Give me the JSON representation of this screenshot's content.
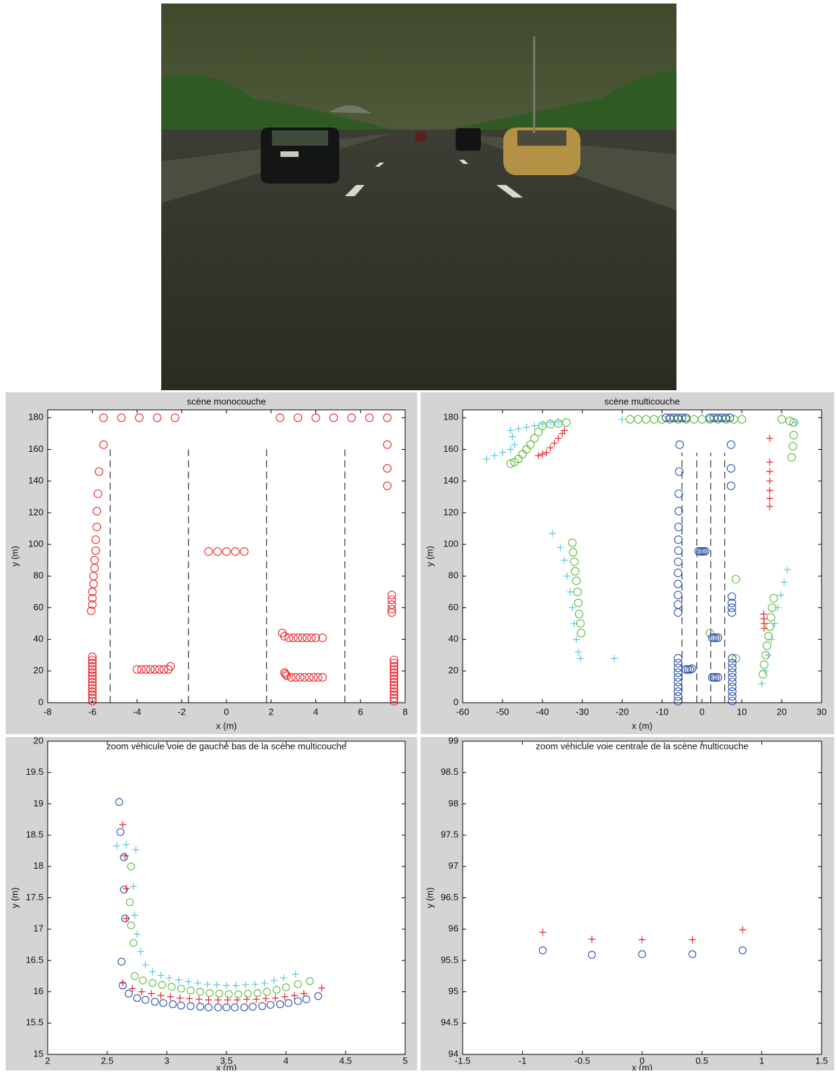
{
  "chart_data": [
    {
      "type": "scatter",
      "title": "scène monocouche",
      "xlabel": "x (m)",
      "ylabel": "y (m)",
      "xlim": [
        -8,
        8
      ],
      "xticks": [
        -8,
        -6,
        -4,
        -2,
        0,
        2,
        4,
        6,
        8
      ],
      "ylim": [
        0,
        185
      ],
      "yticks": [
        0,
        20,
        40,
        60,
        80,
        100,
        120,
        140,
        160,
        180
      ],
      "lane_x": [
        -5.2,
        -1.7,
        1.8,
        5.3
      ],
      "lane_y": [
        0,
        160
      ],
      "series": [
        {
          "color": "#e8232a",
          "marker": "circle",
          "x": [
            -5.5,
            -4.7,
            -3.9,
            -3.1,
            -2.3,
            2.4,
            3.2,
            4.0,
            4.8,
            5.6,
            6.4,
            7.2
          ],
          "y": [
            180,
            180,
            180,
            180,
            180,
            180,
            180,
            180,
            180,
            180,
            180,
            180
          ]
        },
        {
          "color": "#e8232a",
          "marker": "circle",
          "x": [
            -5.5,
            -5.7,
            -5.75,
            -5.8,
            -5.8,
            -5.85,
            -5.85,
            -5.9,
            -5.9,
            -5.95,
            -5.95,
            -6,
            -6,
            -6,
            -6.05,
            -6,
            -6,
            -6,
            -6,
            -6,
            -6,
            -6,
            -6,
            -6,
            -6,
            -6,
            -6,
            -6,
            -6,
            -6
          ],
          "y": [
            163,
            146,
            132,
            121,
            111,
            103,
            96,
            90,
            85,
            80,
            75,
            70,
            66,
            62,
            58,
            1,
            3,
            5,
            7,
            9,
            11,
            13,
            15,
            17,
            19,
            21,
            23,
            25,
            27,
            29
          ]
        },
        {
          "color": "#e8232a",
          "marker": "circle",
          "x": [
            7.2,
            7.2,
            7.2,
            7.4,
            7.4,
            7.4,
            7.4,
            7.4,
            7.5,
            7.5,
            7.5,
            7.5,
            7.5,
            7.5,
            7.5,
            7.5,
            7.5,
            7.5,
            7.5,
            7.5,
            7.5,
            7.5
          ],
          "y": [
            163,
            148,
            137,
            68,
            65,
            62,
            59,
            57,
            1,
            3,
            5,
            7,
            9,
            11,
            13,
            15,
            17,
            19,
            21,
            23,
            25,
            27
          ]
        },
        {
          "color": "#e8232a",
          "marker": "circle",
          "x": [
            -0.8,
            -0.4,
            0,
            0.4,
            0.8,
            -4,
            -3.8,
            -3.6,
            -3.4,
            -3.2,
            -3,
            -2.8,
            -2.6,
            -2.5,
            2.5,
            2.6,
            2.8,
            3,
            3.2,
            3.4,
            3.6,
            3.8,
            4,
            4.3,
            2.6,
            2.65,
            2.7,
            2.9,
            3.1,
            3.3,
            3.5,
            3.7,
            3.9,
            4.1,
            4.3
          ],
          "y": [
            95.5,
            95.5,
            95.5,
            95.5,
            95.5,
            21,
            21,
            21,
            21,
            21,
            21,
            21,
            21,
            23,
            44,
            42,
            41,
            41,
            41,
            41,
            41,
            41,
            41,
            41,
            19,
            18,
            17,
            16,
            16,
            16,
            16,
            16,
            16,
            16,
            16
          ]
        }
      ]
    },
    {
      "type": "scatter",
      "title": "scène multicouche",
      "xlabel": "x (m)",
      "ylabel": "y (m)",
      "xlim": [
        -60,
        30
      ],
      "xticks": [
        -60,
        -50,
        -40,
        -30,
        -20,
        -10,
        0,
        10,
        20,
        30
      ],
      "ylim": [
        0,
        185
      ],
      "yticks": [
        0,
        20,
        40,
        60,
        80,
        100,
        120,
        140,
        160,
        180
      ],
      "lane_x": [
        -5.0,
        -1.3,
        2.2,
        5.7
      ],
      "lane_y": [
        0,
        158
      ],
      "series": [
        {
          "color": "#5cb83c",
          "marker": "circle",
          "x": [
            -18,
            -16,
            -14,
            -12,
            -10,
            -8,
            -6,
            -4,
            -2,
            0,
            2,
            4,
            6,
            8,
            10,
            -48,
            -47,
            -46,
            -45,
            -44,
            -43,
            -42,
            -41,
            -40,
            -38,
            -36,
            -34,
            -32.5,
            -32.3,
            -32,
            -31.8,
            -31.5,
            -31.2,
            -31,
            -30.8,
            -30.5,
            -30.3,
            15.3,
            15.6,
            16,
            16.3,
            16.7,
            17,
            17.3,
            17.6,
            18,
            20,
            22,
            23,
            23,
            22.8,
            22.5,
            2,
            8.5,
            8.5
          ],
          "y": [
            179,
            179,
            179,
            179,
            179,
            179,
            179,
            179,
            179,
            179,
            179,
            179,
            179,
            179,
            179,
            151,
            152,
            154,
            157,
            160,
            163,
            167,
            171,
            175,
            176,
            176.5,
            177,
            101,
            95,
            89,
            83,
            77,
            70,
            63,
            56,
            50,
            44,
            18,
            24,
            30,
            36,
            42,
            48,
            54,
            60,
            66,
            179,
            178,
            177,
            169,
            162,
            155,
            44,
            78,
            28
          ]
        },
        {
          "color": "#5bc8e0",
          "marker": "plus",
          "x": [
            -54,
            -52,
            -50,
            -48,
            -47,
            -47.5,
            -48,
            -46,
            -44,
            -42,
            -40,
            -38,
            -36,
            -37.5,
            -35.5,
            -34.5,
            -33.8,
            -33,
            -32.5,
            -32,
            -31.5,
            -31,
            -30.5,
            -22,
            15,
            15.8,
            16.6,
            17.4,
            18.2,
            19,
            19.8,
            20.6,
            21.4,
            -20,
            23.5
          ],
          "y": [
            154,
            156,
            158,
            160,
            163,
            168,
            172,
            173,
            174,
            175,
            176,
            177,
            177.5,
            107,
            98,
            90,
            80,
            70,
            60,
            50,
            40,
            32,
            28,
            28,
            12,
            20,
            30,
            40,
            50,
            60,
            68,
            76,
            84,
            179,
            177
          ]
        },
        {
          "color": "#e8232a",
          "marker": "plus",
          "x": [
            -41,
            -40,
            -39,
            -38,
            -37,
            -36,
            -35,
            -34.5,
            17,
            17,
            17,
            17,
            17,
            17,
            17,
            15.5,
            15.5,
            15.6,
            15.6
          ],
          "y": [
            156,
            157,
            158,
            161,
            164,
            167,
            170,
            172,
            167,
            152,
            146,
            140,
            134,
            129,
            124,
            56,
            53,
            50,
            47
          ]
        },
        {
          "color": "#2850a8",
          "marker": "circle",
          "x": [
            -9,
            -8,
            -7,
            -6,
            -5,
            -4,
            2,
            3,
            4,
            5,
            6,
            7,
            -5.6,
            -5.7,
            -5.8,
            -5.8,
            -5.85,
            -5.9,
            -5.9,
            -5.95,
            -6,
            -6,
            -6,
            -6,
            -6,
            -6,
            -6,
            -6,
            -6,
            -6,
            -6,
            -6,
            -6,
            -6,
            -6
          ],
          "y": [
            180,
            180,
            180,
            180,
            180,
            180,
            180,
            180,
            180,
            180,
            180,
            180,
            163,
            146,
            132,
            121,
            111,
            103,
            96,
            89,
            82,
            75,
            68,
            62,
            57,
            1,
            4,
            7,
            10,
            13,
            16,
            19,
            22,
            25,
            28
          ]
        },
        {
          "color": "#2850a8",
          "marker": "circle",
          "x": [
            7.3,
            7.3,
            7.3,
            7.5,
            7.5,
            7.5,
            7.5,
            7.6,
            7.6,
            7.6,
            7.6,
            7.6,
            7.6,
            7.6,
            7.6,
            7.6,
            7.6,
            -0.8,
            -0.4,
            0,
            0.4,
            0.8,
            -4,
            -3.5,
            -3,
            -2.5,
            2.6,
            3,
            3.5,
            4,
            2.6,
            3,
            3.5,
            4
          ],
          "y": [
            163,
            148,
            137,
            67,
            63,
            60,
            57,
            1,
            4,
            7,
            10,
            13,
            16,
            19,
            22,
            25,
            28,
            95.7,
            95.6,
            95.6,
            95.6,
            95.7,
            21,
            21,
            21,
            21.5,
            41,
            41,
            41,
            41,
            16,
            16,
            16,
            16
          ]
        }
      ]
    },
    {
      "type": "scatter",
      "title": "zoom véhicule voie de gauche bas de la scène multicouche",
      "xlabel": "x (m)",
      "ylabel": "y (m)",
      "xlim": [
        2,
        5
      ],
      "xticks": [
        2,
        2.5,
        3,
        3.5,
        4,
        4.5,
        5
      ],
      "ylim": [
        15,
        20
      ],
      "yticks": [
        15,
        15.5,
        16,
        16.5,
        17,
        17.5,
        18,
        18.5,
        19,
        19.5,
        20
      ],
      "series": [
        {
          "color": "#2850a8",
          "marker": "circle",
          "x": [
            2.6,
            2.61,
            2.64,
            2.64,
            2.65,
            2.62,
            2.63,
            2.68,
            2.75,
            2.82,
            2.9,
            2.97,
            3.05,
            3.12,
            3.2,
            3.28,
            3.35,
            3.43,
            3.5,
            3.57,
            3.65,
            3.72,
            3.8,
            3.87,
            3.95,
            4.02,
            4.1,
            4.17,
            4.27
          ],
          "y": [
            19.03,
            18.55,
            18.15,
            17.63,
            17.17,
            16.48,
            16.1,
            15.97,
            15.9,
            15.87,
            15.84,
            15.82,
            15.8,
            15.78,
            15.77,
            15.76,
            15.75,
            15.75,
            15.75,
            15.75,
            15.75,
            15.76,
            15.77,
            15.79,
            15.8,
            15.82,
            15.85,
            15.88,
            15.93
          ]
        },
        {
          "color": "#e8232a",
          "marker": "plus",
          "x": [
            2.63,
            2.65,
            2.66,
            2.66,
            2.63,
            2.71,
            2.79,
            2.87,
            2.95,
            3.03,
            3.11,
            3.19,
            3.27,
            3.35,
            3.43,
            3.51,
            3.59,
            3.67,
            3.75,
            3.83,
            3.91,
            3.99,
            4.07,
            4.15,
            4.3
          ],
          "y": [
            18.67,
            18.17,
            17.65,
            17.17,
            16.14,
            16.05,
            16.0,
            15.97,
            15.94,
            15.92,
            15.9,
            15.89,
            15.88,
            15.87,
            15.87,
            15.87,
            15.87,
            15.88,
            15.88,
            15.89,
            15.9,
            15.92,
            15.94,
            15.97,
            16.06
          ]
        },
        {
          "color": "#5cb83c",
          "marker": "circle",
          "x": [
            2.7,
            2.69,
            2.7,
            2.72,
            2.73,
            2.8,
            2.88,
            2.96,
            3.04,
            3.12,
            3.2,
            3.28,
            3.36,
            3.44,
            3.52,
            3.6,
            3.68,
            3.76,
            3.84,
            3.92,
            4.0,
            4.1,
            4.2
          ],
          "y": [
            18.0,
            17.43,
            17.06,
            16.78,
            16.25,
            16.18,
            16.14,
            16.11,
            16.08,
            16.05,
            16.02,
            16.0,
            15.98,
            15.97,
            15.96,
            15.96,
            15.97,
            15.98,
            16.0,
            16.03,
            16.07,
            16.12,
            16.17
          ]
        },
        {
          "color": "#5bc8e0",
          "marker": "plus",
          "x": [
            2.58,
            2.66,
            2.74,
            2.72,
            2.73,
            2.75,
            2.78,
            2.82,
            2.88,
            2.95,
            3.02,
            3.1,
            3.18,
            3.26,
            3.34,
            3.42,
            3.5,
            3.58,
            3.66,
            3.74,
            3.82,
            3.9,
            3.98,
            4.08
          ],
          "y": [
            18.33,
            18.35,
            18.27,
            17.68,
            17.22,
            16.92,
            16.64,
            16.43,
            16.32,
            16.26,
            16.22,
            16.19,
            16.16,
            16.14,
            16.12,
            16.11,
            16.1,
            16.1,
            16.11,
            16.12,
            16.14,
            16.18,
            16.22,
            16.28
          ]
        }
      ]
    },
    {
      "type": "scatter",
      "title": "zoom véhicule voie centrale de la scène multicouche",
      "xlabel": "x (m)",
      "ylabel": "y (m)",
      "xlim": [
        -1.5,
        1.5
      ],
      "xticks": [
        -1.5,
        -1,
        -0.5,
        0,
        0.5,
        1,
        1.5
      ],
      "ylim": [
        94,
        99
      ],
      "yticks": [
        94,
        94.5,
        95,
        95.5,
        96,
        96.5,
        97,
        97.5,
        98,
        98.5,
        99
      ],
      "series": [
        {
          "color": "#2850a8",
          "marker": "circle",
          "x": [
            -0.83,
            -0.42,
            0,
            0.42,
            0.84
          ],
          "y": [
            95.66,
            95.59,
            95.6,
            95.6,
            95.66
          ]
        },
        {
          "color": "#e8232a",
          "marker": "plus",
          "x": [
            -0.83,
            -0.42,
            0,
            0.42,
            0.84
          ],
          "y": [
            95.95,
            95.84,
            95.83,
            95.83,
            95.99
          ]
        }
      ]
    }
  ]
}
